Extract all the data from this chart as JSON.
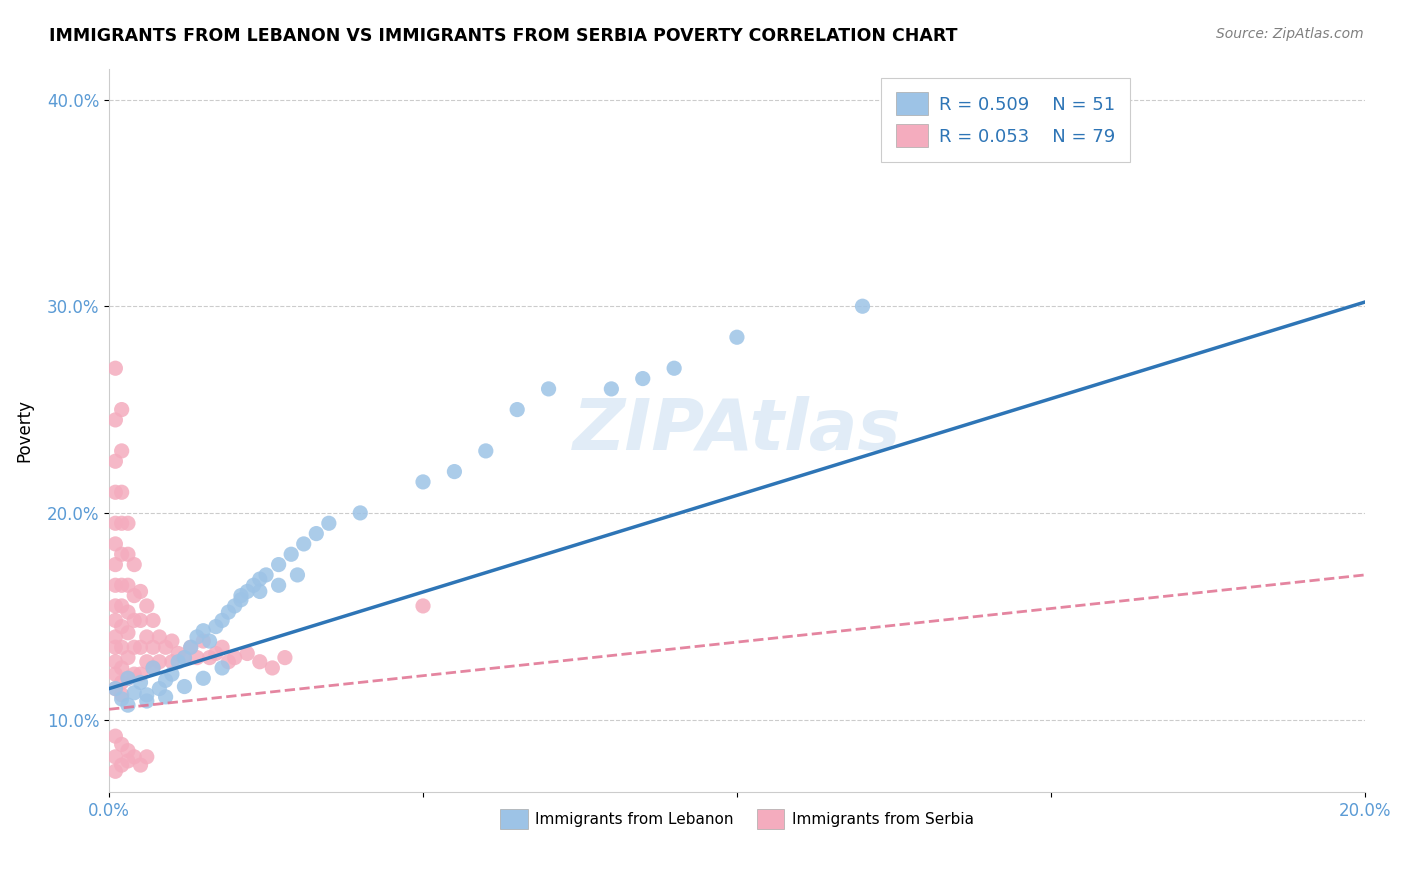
{
  "title": "IMMIGRANTS FROM LEBANON VS IMMIGRANTS FROM SERBIA POVERTY CORRELATION CHART",
  "source": "Source: ZipAtlas.com",
  "ylabel": "Poverty",
  "xlim": [
    0.0,
    0.2
  ],
  "ylim": [
    0.065,
    0.415
  ],
  "yticks": [
    0.1,
    0.2,
    0.3,
    0.4
  ],
  "yticklabels": [
    "10.0%",
    "20.0%",
    "30.0%",
    "40.0%"
  ],
  "watermark": "ZIPAtlas",
  "legend_r1": "R = 0.509",
  "legend_n1": "N = 51",
  "legend_r2": "R = 0.053",
  "legend_n2": "N = 79",
  "lebanon_color": "#9DC3E6",
  "serbia_color": "#F4ACBE",
  "lebanon_line_color": "#2E75B6",
  "serbia_line_color": "#E07090",
  "lebanon_scatter_x": [
    0.001,
    0.002,
    0.003,
    0.004,
    0.005,
    0.006,
    0.007,
    0.008,
    0.009,
    0.01,
    0.011,
    0.012,
    0.013,
    0.014,
    0.015,
    0.016,
    0.017,
    0.018,
    0.019,
    0.02,
    0.021,
    0.022,
    0.023,
    0.024,
    0.025,
    0.027,
    0.029,
    0.031,
    0.033,
    0.035,
    0.003,
    0.006,
    0.009,
    0.012,
    0.015,
    0.018,
    0.021,
    0.024,
    0.027,
    0.03,
    0.04,
    0.05,
    0.055,
    0.06,
    0.065,
    0.07,
    0.08,
    0.085,
    0.09,
    0.1,
    0.12
  ],
  "lebanon_scatter_y": [
    0.115,
    0.11,
    0.12,
    0.113,
    0.118,
    0.112,
    0.125,
    0.115,
    0.119,
    0.122,
    0.128,
    0.13,
    0.135,
    0.14,
    0.143,
    0.138,
    0.145,
    0.148,
    0.152,
    0.155,
    0.158,
    0.162,
    0.165,
    0.168,
    0.17,
    0.175,
    0.18,
    0.185,
    0.19,
    0.195,
    0.107,
    0.109,
    0.111,
    0.116,
    0.12,
    0.125,
    0.16,
    0.162,
    0.165,
    0.17,
    0.2,
    0.215,
    0.22,
    0.23,
    0.25,
    0.26,
    0.26,
    0.265,
    0.27,
    0.285,
    0.3
  ],
  "serbia_scatter_x": [
    0.001,
    0.001,
    0.001,
    0.001,
    0.001,
    0.001,
    0.001,
    0.001,
    0.001,
    0.001,
    0.001,
    0.001,
    0.001,
    0.001,
    0.001,
    0.002,
    0.002,
    0.002,
    0.002,
    0.002,
    0.002,
    0.002,
    0.002,
    0.002,
    0.002,
    0.002,
    0.002,
    0.003,
    0.003,
    0.003,
    0.003,
    0.003,
    0.003,
    0.003,
    0.004,
    0.004,
    0.004,
    0.004,
    0.004,
    0.005,
    0.005,
    0.005,
    0.005,
    0.006,
    0.006,
    0.006,
    0.007,
    0.007,
    0.007,
    0.008,
    0.008,
    0.009,
    0.01,
    0.01,
    0.011,
    0.012,
    0.013,
    0.014,
    0.015,
    0.016,
    0.017,
    0.018,
    0.019,
    0.02,
    0.022,
    0.024,
    0.026,
    0.028,
    0.05,
    0.001,
    0.001,
    0.001,
    0.002,
    0.002,
    0.003,
    0.003,
    0.004,
    0.005,
    0.006
  ],
  "serbia_scatter_y": [
    0.27,
    0.245,
    0.225,
    0.21,
    0.195,
    0.185,
    0.175,
    0.165,
    0.155,
    0.148,
    0.14,
    0.135,
    0.128,
    0.122,
    0.115,
    0.25,
    0.23,
    0.21,
    0.195,
    0.18,
    0.165,
    0.155,
    0.145,
    0.135,
    0.125,
    0.118,
    0.112,
    0.195,
    0.18,
    0.165,
    0.152,
    0.142,
    0.13,
    0.12,
    0.175,
    0.16,
    0.148,
    0.135,
    0.122,
    0.162,
    0.148,
    0.135,
    0.122,
    0.155,
    0.14,
    0.128,
    0.148,
    0.135,
    0.125,
    0.14,
    0.128,
    0.135,
    0.138,
    0.128,
    0.132,
    0.13,
    0.135,
    0.13,
    0.138,
    0.13,
    0.132,
    0.135,
    0.128,
    0.13,
    0.132,
    0.128,
    0.125,
    0.13,
    0.155,
    0.092,
    0.082,
    0.075,
    0.088,
    0.078,
    0.085,
    0.08,
    0.082,
    0.078,
    0.082
  ],
  "leb_line_x": [
    0.0,
    0.2
  ],
  "leb_line_y": [
    0.115,
    0.302
  ],
  "ser_line_x": [
    0.0,
    0.2
  ],
  "ser_line_y": [
    0.105,
    0.17
  ]
}
